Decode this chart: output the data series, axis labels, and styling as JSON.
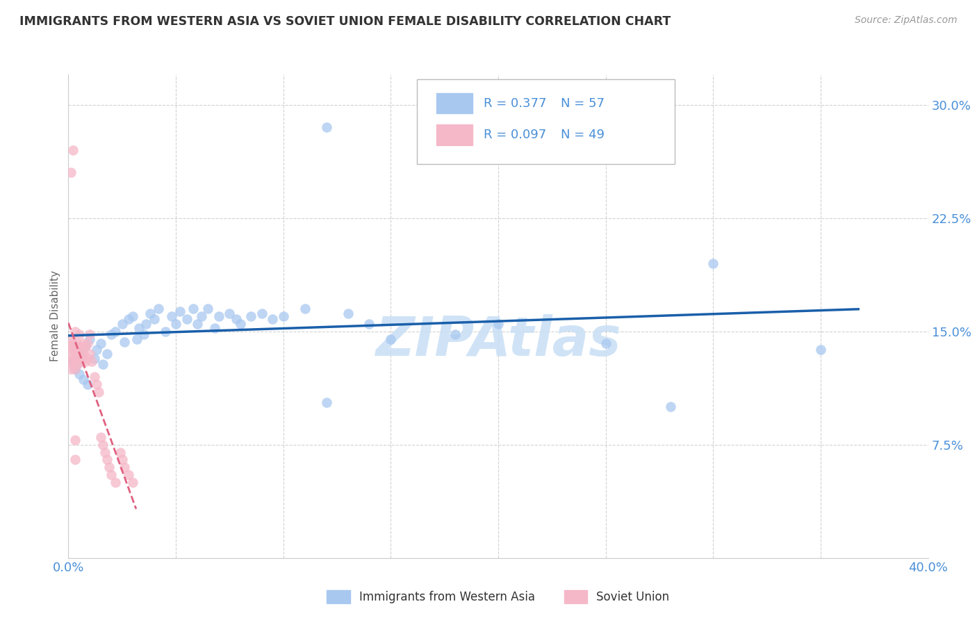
{
  "title": "IMMIGRANTS FROM WESTERN ASIA VS SOVIET UNION FEMALE DISABILITY CORRELATION CHART",
  "source": "Source: ZipAtlas.com",
  "ylabel": "Female Disability",
  "xlim": [
    0.0,
    0.4
  ],
  "ylim": [
    0.0,
    0.32
  ],
  "xticks": [
    0.0,
    0.05,
    0.1,
    0.15,
    0.2,
    0.25,
    0.3,
    0.35,
    0.4
  ],
  "yticks": [
    0.0,
    0.075,
    0.15,
    0.225,
    0.3
  ],
  "background_color": "#ffffff",
  "blue_scatter_color": "#a8c8f0",
  "blue_line_color": "#1a5faa",
  "pink_scatter_color": "#f5b8c8",
  "pink_line_color": "#e06080",
  "R_blue": 0.377,
  "N_blue": 57,
  "R_pink": 0.097,
  "N_pink": 49,
  "legend_R_color": "#4a90d9",
  "legend_N_color": "#333333",
  "title_color": "#333333",
  "source_color": "#999999",
  "ylabel_color": "#666666",
  "tick_color": "#4a90d9",
  "grid_color": "#cccccc",
  "watermark_color": "#c8dff5",
  "wa_x": [
    0.002,
    0.003,
    0.004,
    0.005,
    0.006,
    0.007,
    0.008,
    0.009,
    0.01,
    0.012,
    0.013,
    0.015,
    0.016,
    0.018,
    0.02,
    0.022,
    0.025,
    0.026,
    0.028,
    0.03,
    0.032,
    0.033,
    0.035,
    0.036,
    0.038,
    0.04,
    0.042,
    0.045,
    0.048,
    0.05,
    0.052,
    0.055,
    0.058,
    0.06,
    0.062,
    0.065,
    0.068,
    0.07,
    0.075,
    0.078,
    0.08,
    0.085,
    0.09,
    0.095,
    0.1,
    0.11,
    0.13,
    0.14,
    0.15,
    0.18,
    0.2,
    0.25,
    0.3,
    0.35,
    0.28,
    0.12,
    0.12
  ],
  "wa_y": [
    0.13,
    0.125,
    0.128,
    0.122,
    0.135,
    0.118,
    0.14,
    0.115,
    0.145,
    0.132,
    0.138,
    0.142,
    0.128,
    0.135,
    0.148,
    0.15,
    0.155,
    0.143,
    0.158,
    0.16,
    0.145,
    0.152,
    0.148,
    0.155,
    0.162,
    0.158,
    0.165,
    0.15,
    0.16,
    0.155,
    0.163,
    0.158,
    0.165,
    0.155,
    0.16,
    0.165,
    0.152,
    0.16,
    0.162,
    0.158,
    0.155,
    0.16,
    0.162,
    0.158,
    0.16,
    0.165,
    0.162,
    0.155,
    0.145,
    0.148,
    0.155,
    0.142,
    0.195,
    0.138,
    0.1,
    0.285,
    0.103
  ],
  "su_x": [
    0.001,
    0.001,
    0.001,
    0.001,
    0.001,
    0.002,
    0.002,
    0.002,
    0.002,
    0.003,
    0.003,
    0.003,
    0.003,
    0.004,
    0.004,
    0.004,
    0.005,
    0.005,
    0.005,
    0.006,
    0.006,
    0.007,
    0.007,
    0.008,
    0.008,
    0.009,
    0.009,
    0.01,
    0.01,
    0.011,
    0.012,
    0.013,
    0.014,
    0.015,
    0.016,
    0.017,
    0.018,
    0.019,
    0.02,
    0.022,
    0.024,
    0.025,
    0.026,
    0.028,
    0.03,
    0.003,
    0.003,
    0.002,
    0.001
  ],
  "su_y": [
    0.13,
    0.125,
    0.135,
    0.14,
    0.145,
    0.128,
    0.132,
    0.138,
    0.142,
    0.125,
    0.135,
    0.14,
    0.15,
    0.128,
    0.132,
    0.142,
    0.135,
    0.14,
    0.148,
    0.13,
    0.138,
    0.135,
    0.142,
    0.13,
    0.14,
    0.132,
    0.142,
    0.135,
    0.148,
    0.13,
    0.12,
    0.115,
    0.11,
    0.08,
    0.075,
    0.07,
    0.065,
    0.06,
    0.055,
    0.05,
    0.07,
    0.065,
    0.06,
    0.055,
    0.05,
    0.078,
    0.065,
    0.27,
    0.255
  ]
}
